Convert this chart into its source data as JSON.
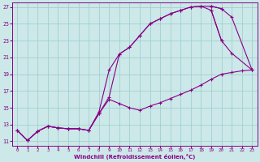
{
  "xlabel": "Windchill (Refroidissement éolien,°C)",
  "xlim": [
    -0.5,
    23.5
  ],
  "ylim": [
    10.5,
    27.5
  ],
  "xticks": [
    0,
    1,
    2,
    3,
    4,
    5,
    6,
    7,
    8,
    9,
    10,
    11,
    12,
    13,
    14,
    15,
    16,
    17,
    18,
    19,
    20,
    21,
    22,
    23
  ],
  "yticks": [
    11,
    13,
    15,
    17,
    19,
    21,
    23,
    25,
    27
  ],
  "bg_color": "#cce8e8",
  "grid_color": "#99cccc",
  "line_color": "#880088",
  "curves": [
    {
      "x": [
        0,
        1,
        2,
        3,
        4,
        5,
        6,
        7,
        8,
        9,
        10,
        11,
        12,
        13,
        14,
        15,
        16,
        17,
        18,
        19,
        20
      ],
      "y": [
        12.3,
        11.1,
        12.2,
        12.8,
        12.6,
        12.5,
        12.5,
        12.3,
        14.5,
        19.5,
        21.4,
        22.2,
        23.6,
        25.0,
        25.6,
        26.2,
        26.6,
        27.0,
        27.1,
        27.1,
        26.8
      ]
    },
    {
      "x": [
        0,
        1,
        2,
        3,
        4,
        5,
        6,
        7,
        8,
        9,
        10,
        11,
        12,
        13,
        14,
        15,
        16,
        17,
        18,
        19,
        20
      ],
      "y": [
        12.3,
        11.1,
        12.2,
        12.8,
        12.6,
        12.5,
        12.5,
        12.3,
        14.3,
        16.3,
        21.4,
        22.2,
        23.6,
        25.0,
        25.6,
        26.2,
        26.6,
        27.0,
        27.1,
        26.6,
        23.0
      ]
    },
    {
      "x": [
        19,
        20,
        21,
        23
      ],
      "y": [
        27.1,
        26.8,
        25.8,
        19.5
      ]
    },
    {
      "comment": "Line 4 - drops sharply: from x=20 ~23 to x=21 ~21.5 to x=23 ~19.5",
      "x": [
        19,
        20,
        21,
        23
      ],
      "y": [
        26.6,
        23.0,
        21.5,
        19.5
      ]
    },
    {
      "x": [
        0,
        1,
        2,
        3,
        4,
        5,
        6,
        7,
        8,
        9,
        10,
        11,
        12,
        13,
        14,
        15,
        16,
        17,
        18,
        19,
        20,
        21,
        22,
        23
      ],
      "y": [
        12.3,
        11.1,
        12.2,
        12.8,
        12.6,
        12.5,
        12.5,
        12.3,
        14.3,
        16.0,
        15.5,
        15.0,
        14.7,
        15.2,
        15.6,
        16.1,
        16.6,
        17.1,
        17.7,
        18.4,
        19.0,
        19.2,
        19.4,
        19.5
      ]
    }
  ]
}
